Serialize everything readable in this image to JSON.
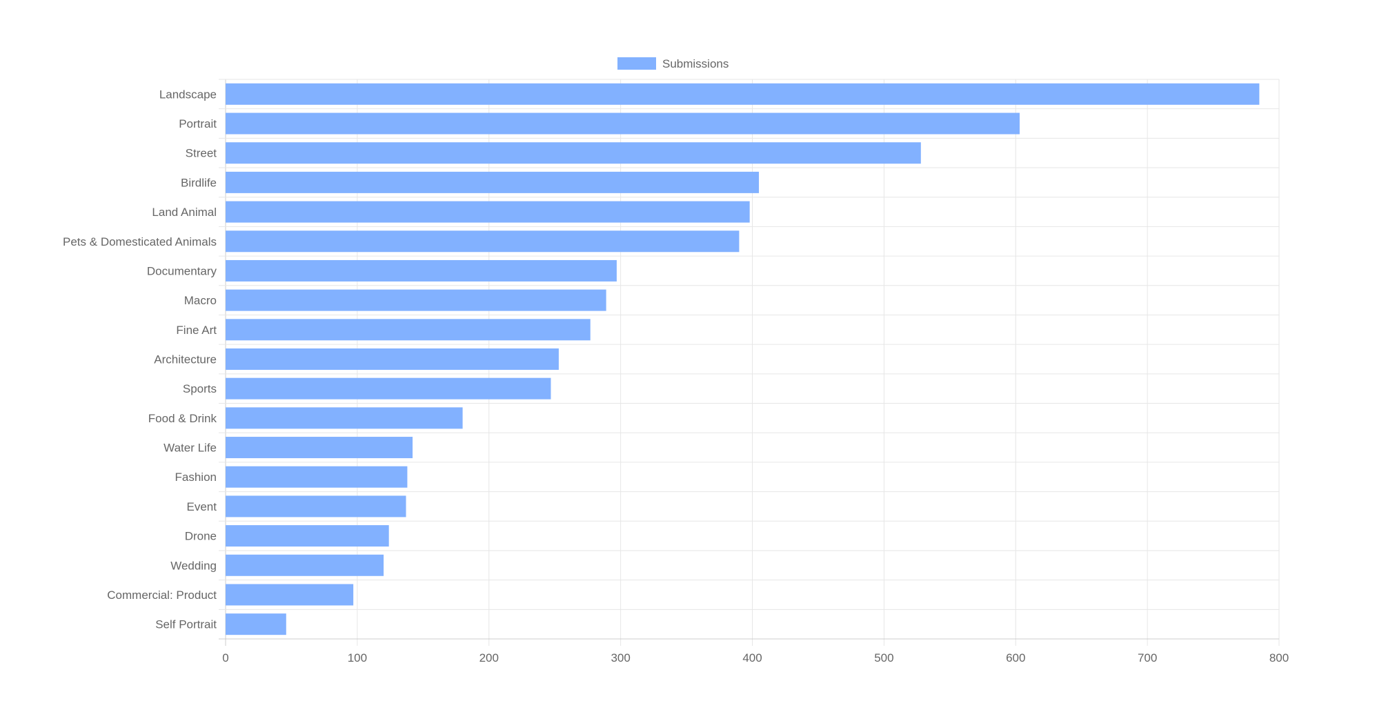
{
  "chart_data": {
    "type": "bar",
    "orientation": "horizontal",
    "categories": [
      "Landscape",
      "Portrait",
      "Street",
      "Birdlife",
      "Land Animal",
      "Pets & Domesticated Animals",
      "Documentary",
      "Macro",
      "Fine Art",
      "Architecture",
      "Sports",
      "Food & Drink",
      "Water Life",
      "Fashion",
      "Event",
      "Drone",
      "Wedding",
      "Commercial: Product",
      "Self Portrait"
    ],
    "series": [
      {
        "name": "Submissions",
        "values": [
          785,
          603,
          528,
          405,
          398,
          390,
          297,
          289,
          277,
          253,
          247,
          180,
          142,
          138,
          137,
          124,
          120,
          97,
          46
        ],
        "color": "#82b1ff"
      }
    ],
    "xlim": [
      0,
      800
    ],
    "x_ticks": [
      0,
      100,
      200,
      300,
      400,
      500,
      600,
      700,
      800
    ],
    "title": "",
    "xlabel": "",
    "ylabel": "",
    "grid": true,
    "legend_position": "top-center",
    "colors": {
      "bar": "#82b1ff",
      "grid": "#e6e6e6",
      "axis": "#cccccc",
      "text": "#666666"
    }
  }
}
